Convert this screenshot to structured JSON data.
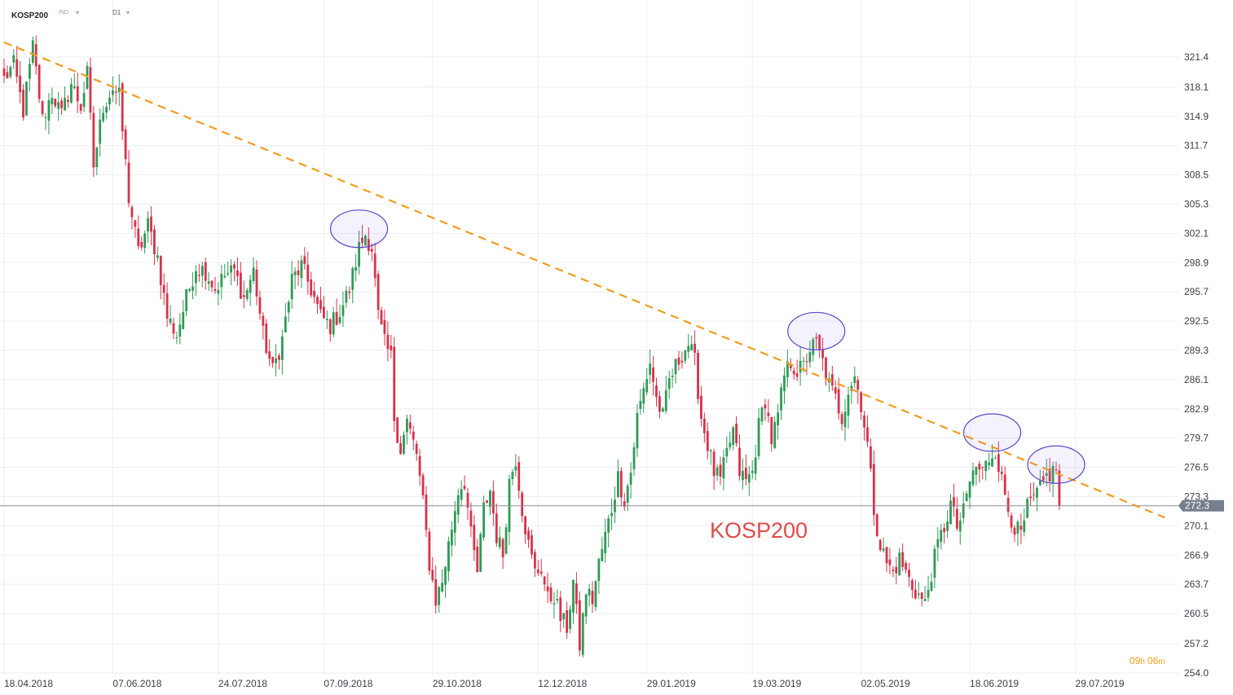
{
  "header": {
    "symbol": "KOSP200",
    "instrument_type": "IND",
    "timeframe": "D1",
    "dropdown_icon": "caret-down-icon"
  },
  "countdown": {
    "hours": "09",
    "h_unit": "h",
    "minutes": "06",
    "m_unit": "m"
  },
  "chart_data": {
    "type": "candlestick",
    "title": "KOSP200",
    "y_ticks": [
      321.4,
      318.1,
      314.9,
      311.7,
      308.5,
      305.3,
      302.1,
      298.9,
      295.7,
      292.5,
      289.3,
      286.1,
      282.9,
      279.7,
      276.5,
      273.3,
      270.1,
      266.9,
      263.7,
      260.5,
      257.2,
      254.0
    ],
    "ylim": [
      254.0,
      324.6
    ],
    "x_tick_labels": [
      "18.04.2018",
      "07.06.2018",
      "24.07.2018",
      "07.09.2018",
      "29.10.2018",
      "12.12.2018",
      "29.01.2019",
      "19.03.2019",
      "02.05.2019",
      "18.06.2019",
      "29.07.2019"
    ],
    "x_tick_bar_index": [
      0,
      34,
      67,
      100,
      134,
      167,
      201,
      234,
      268,
      302,
      335
    ],
    "last_price": 272.3,
    "last_price_label": "272.3",
    "bar_count": 331,
    "trendline": {
      "from": {
        "bar": 0,
        "price": 323.0
      },
      "to": {
        "bar": 363,
        "price": 271.0
      },
      "style": "dashed",
      "color": "#f39c1e"
    },
    "highlight_circles": [
      {
        "center_bar": 111,
        "center_price": 302.6
      },
      {
        "center_bar": 254,
        "center_price": 291.4
      },
      {
        "center_bar": 309,
        "center_price": 280.3
      },
      {
        "center_bar": 329,
        "center_price": 276.8
      }
    ],
    "anchors": [
      [
        0,
        319.0
      ],
      [
        3,
        320.5
      ],
      [
        6,
        315.5
      ],
      [
        9,
        322.5
      ],
      [
        12,
        314.5
      ],
      [
        15,
        317.5
      ],
      [
        18,
        315.0
      ],
      [
        21,
        318.5
      ],
      [
        24,
        316.0
      ],
      [
        26,
        319.5
      ],
      [
        28,
        309.5
      ],
      [
        31,
        316.0
      ],
      [
        34,
        318.0
      ],
      [
        36,
        317.0
      ],
      [
        39,
        306.0
      ],
      [
        42,
        300.0
      ],
      [
        45,
        303.0
      ],
      [
        48,
        299.5
      ],
      [
        51,
        293.0
      ],
      [
        54,
        291.0
      ],
      [
        57,
        295.0
      ],
      [
        60,
        298.5
      ],
      [
        63,
        298.0
      ],
      [
        66,
        296.0
      ],
      [
        69,
        297.5
      ],
      [
        72,
        298.0
      ],
      [
        75,
        295.0
      ],
      [
        78,
        298.0
      ],
      [
        81,
        291.0
      ],
      [
        84,
        287.0
      ],
      [
        87,
        290.5
      ],
      [
        90,
        297.0
      ],
      [
        93,
        298.5
      ],
      [
        96,
        296.0
      ],
      [
        99,
        293.0
      ],
      [
        102,
        292.0
      ],
      [
        105,
        293.5
      ],
      [
        108,
        296.0
      ],
      [
        111,
        300.5
      ],
      [
        113,
        302.0
      ],
      [
        115,
        300.5
      ],
      [
        117,
        293.0
      ],
      [
        119,
        290.0
      ],
      [
        121,
        288.5
      ],
      [
        122,
        282.0
      ],
      [
        124,
        278.5
      ],
      [
        126,
        281.5
      ],
      [
        129,
        278.0
      ],
      [
        131,
        272.5
      ],
      [
        133,
        266.0
      ],
      [
        135,
        262.0
      ],
      [
        137,
        264.0
      ],
      [
        140,
        270.0
      ],
      [
        142,
        274.0
      ],
      [
        144,
        275.0
      ],
      [
        146,
        269.0
      ],
      [
        148,
        265.0
      ],
      [
        150,
        272.0
      ],
      [
        152,
        274.0
      ],
      [
        154,
        269.0
      ],
      [
        156,
        267.0
      ],
      [
        158,
        275.0
      ],
      [
        160,
        277.5
      ],
      [
        162,
        272.0
      ],
      [
        164,
        268.0
      ],
      [
        166,
        265.0
      ],
      [
        168,
        265.5
      ],
      [
        170,
        262.0
      ],
      [
        172,
        262.5
      ],
      [
        174,
        260.0
      ],
      [
        176,
        259.0
      ],
      [
        178,
        264.0
      ],
      [
        180,
        257.0
      ],
      [
        182,
        263.0
      ],
      [
        184,
        262.0
      ],
      [
        186,
        266.0
      ],
      [
        188,
        269.0
      ],
      [
        190,
        272.0
      ],
      [
        192,
        275.5
      ],
      [
        194,
        273.0
      ],
      [
        196,
        276.0
      ],
      [
        198,
        282.0
      ],
      [
        200,
        285.0
      ],
      [
        202,
        288.0
      ],
      [
        204,
        284.0
      ],
      [
        206,
        282.0
      ],
      [
        208,
        286.0
      ],
      [
        210,
        287.5
      ],
      [
        212,
        289.0
      ],
      [
        214,
        290.0
      ],
      [
        216,
        288.0
      ],
      [
        218,
        282.0
      ],
      [
        220,
        279.0
      ],
      [
        222,
        276.0
      ],
      [
        224,
        275.0
      ],
      [
        226,
        278.0
      ],
      [
        228,
        280.5
      ],
      [
        230,
        276.0
      ],
      [
        232,
        275.0
      ],
      [
        234,
        276.0
      ],
      [
        236,
        281.0
      ],
      [
        238,
        284.0
      ],
      [
        240,
        279.5
      ],
      [
        242,
        282.0
      ],
      [
        244,
        286.5
      ],
      [
        246,
        288.0
      ],
      [
        248,
        287.0
      ],
      [
        250,
        287.5
      ],
      [
        252,
        289.5
      ],
      [
        254,
        290.0
      ],
      [
        256,
        288.0
      ],
      [
        258,
        285.5
      ],
      [
        260,
        284.0
      ],
      [
        262,
        282.0
      ],
      [
        264,
        285.0
      ],
      [
        266,
        286.5
      ],
      [
        268,
        283.5
      ],
      [
        270,
        279.0
      ],
      [
        272,
        272.0
      ],
      [
        274,
        268.0
      ],
      [
        276,
        266.0
      ],
      [
        278,
        265.0
      ],
      [
        280,
        266.5
      ],
      [
        282,
        265.0
      ],
      [
        284,
        263.5
      ],
      [
        286,
        262.5
      ],
      [
        288,
        261.5
      ],
      [
        290,
        265.0
      ],
      [
        292,
        268.0
      ],
      [
        294,
        270.0
      ],
      [
        296,
        272.5
      ],
      [
        298,
        270.0
      ],
      [
        300,
        271.5
      ],
      [
        302,
        275.0
      ],
      [
        304,
        276.5
      ],
      [
        306,
        276.0
      ],
      [
        308,
        277.5
      ],
      [
        310,
        278.5
      ],
      [
        312,
        275.0
      ],
      [
        314,
        272.0
      ],
      [
        316,
        270.0
      ],
      [
        318,
        269.0
      ],
      [
        320,
        272.0
      ],
      [
        322,
        273.0
      ],
      [
        324,
        274.0
      ],
      [
        326,
        275.5
      ],
      [
        328,
        276.0
      ],
      [
        329,
        276.5
      ],
      [
        330,
        272.3
      ]
    ]
  },
  "colors": {
    "bull": "#2f9a56",
    "bear": "#d9314a",
    "grid": "#eceef2",
    "axis_text": "#3a3f47",
    "trendline": "#f39c1e",
    "circle_stroke": "#5b46c9",
    "circle_fill": "rgba(150,130,230,0.10)",
    "price_tag": "#76808c",
    "countdown": "#f39c1e",
    "title_overlay": "#e04b4b"
  },
  "icons": {
    "dropdown": "caret-down-icon"
  }
}
